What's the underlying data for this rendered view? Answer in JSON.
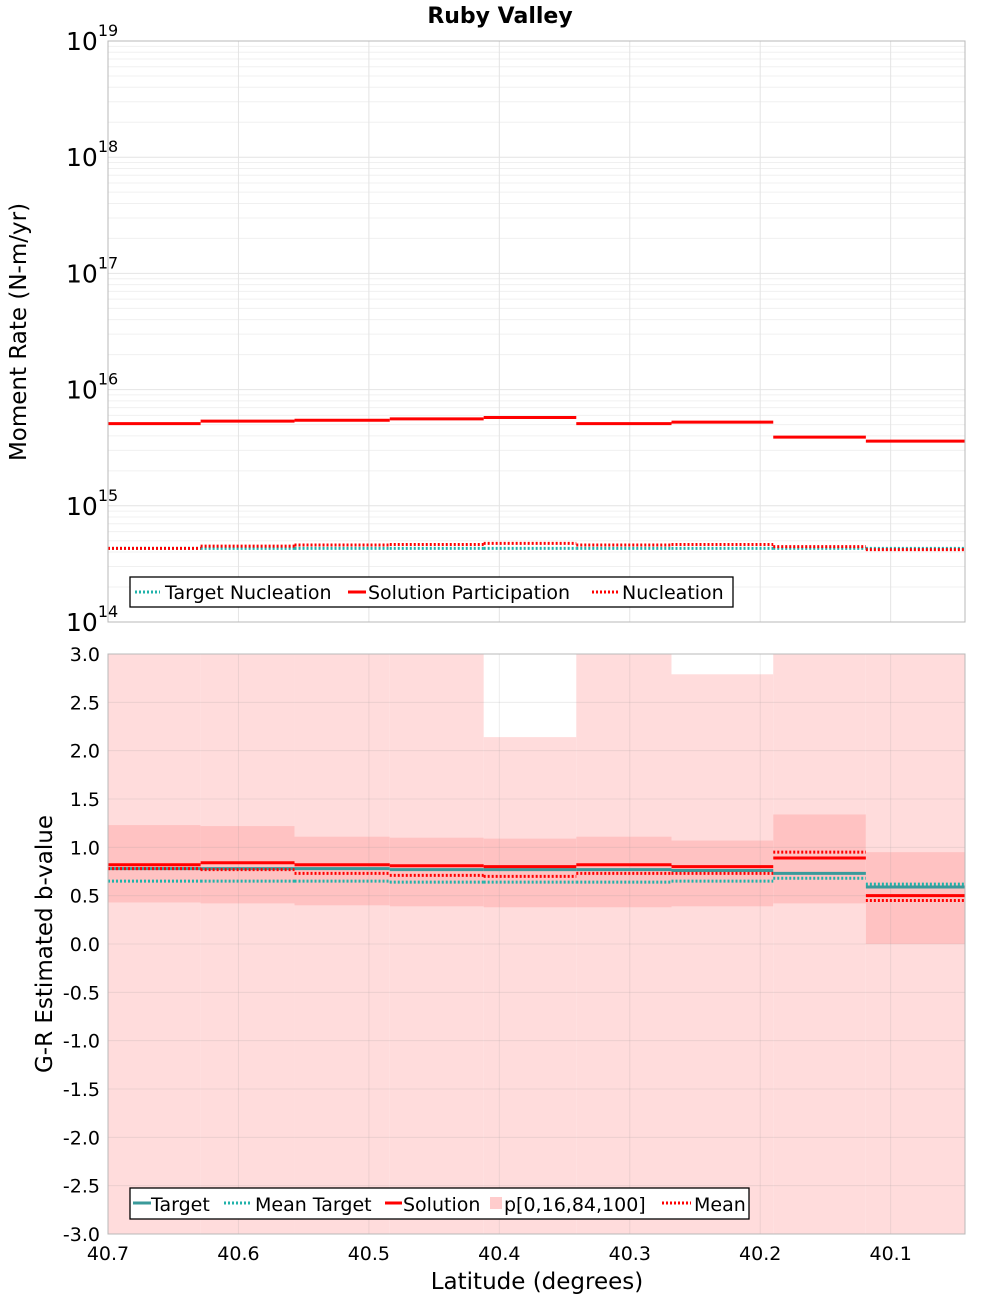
{
  "chart_data": [
    {
      "type": "line",
      "title": "Ruby Valley",
      "xlabel": "",
      "ylabel": "Moment Rate (N-m/yr)",
      "yscale": "log",
      "ylim": [
        100000000000000.0,
        1e+19
      ],
      "xlim": [
        40.7,
        40.043
      ],
      "x_inverted": true,
      "grid": true,
      "legend_position": "bottom-left",
      "yticks": [
        {
          "base": "10",
          "exp": "14"
        },
        {
          "base": "10",
          "exp": "15"
        },
        {
          "base": "10",
          "exp": "16"
        },
        {
          "base": "10",
          "exp": "17"
        },
        {
          "base": "10",
          "exp": "18"
        },
        {
          "base": "10",
          "exp": "19"
        }
      ],
      "bin_edges": [
        40.7,
        40.629,
        40.557,
        40.484,
        40.412,
        40.341,
        40.268,
        40.19,
        40.119,
        40.043
      ],
      "series": [
        {
          "name": "Target Nucleation",
          "style": "dotted",
          "color": "#20b2aa",
          "values": [
            430000000000000.0,
            430000000000000.0,
            430000000000000.0,
            430000000000000.0,
            430000000000000.0,
            430000000000000.0,
            430000000000000.0,
            430000000000000.0,
            430000000000000.0
          ]
        },
        {
          "name": "Solution Participation",
          "style": "solid",
          "color": "#ff0000",
          "values": [
            5100000000000000.0,
            5350000000000000.0,
            5450000000000000.0,
            5600000000000000.0,
            5750000000000000.0,
            5100000000000000.0,
            5250000000000000.0,
            3900000000000000.0,
            3600000000000000.0
          ]
        },
        {
          "name": "Nucleation",
          "style": "dotted",
          "color": "#ff0000",
          "values": [
            430000000000000.0,
            450000000000000.0,
            460000000000000.0,
            465000000000000.0,
            475000000000000.0,
            460000000000000.0,
            465000000000000.0,
            445000000000000.0,
            420000000000000.0
          ]
        }
      ]
    },
    {
      "type": "line",
      "title": "",
      "xlabel": "Latitude (degrees)",
      "ylabel": "G-R Estimated b-value",
      "ylim": [
        -3.0,
        3.0
      ],
      "xlim": [
        40.7,
        40.043
      ],
      "x_inverted": true,
      "grid": true,
      "legend_position": "bottom-left",
      "xticks": [
        "40.7",
        "40.6",
        "40.5",
        "40.4",
        "40.3",
        "40.2",
        "40.1"
      ],
      "xtick_values": [
        40.7,
        40.6,
        40.5,
        40.4,
        40.3,
        40.2,
        40.1
      ],
      "yticks": [
        "3.0",
        "2.5",
        "2.0",
        "1.5",
        "1.0",
        "0.5",
        "0.0",
        "-0.5",
        "-1.0",
        "-1.5",
        "-2.0",
        "-2.5",
        "-3.0"
      ],
      "ytick_values": [
        3.0,
        2.5,
        2.0,
        1.5,
        1.0,
        0.5,
        0.0,
        -0.5,
        -1.0,
        -1.5,
        -2.0,
        -2.5,
        -3.0
      ],
      "bin_edges": [
        40.7,
        40.629,
        40.557,
        40.484,
        40.412,
        40.341,
        40.268,
        40.19,
        40.119,
        40.043
      ],
      "bands": {
        "name": "p[0,16,84,100]",
        "color": "#ff0000",
        "p0": [
          -3.0,
          -3.0,
          -3.0,
          -3.0,
          -3.0,
          -3.0,
          -3.0,
          -3.0,
          -3.0
        ],
        "p100": [
          3.0,
          3.0,
          3.0,
          3.0,
          2.14,
          3.0,
          2.79,
          3.0,
          3.0
        ],
        "p16": [
          0.43,
          0.42,
          0.4,
          0.39,
          0.38,
          0.38,
          0.39,
          0.42,
          0.0
        ],
        "p84": [
          1.23,
          1.22,
          1.11,
          1.1,
          1.09,
          1.11,
          1.07,
          1.34,
          0.95
        ]
      },
      "series": [
        {
          "name": "Target",
          "style": "solid",
          "color": "#3a9a9a",
          "values": [
            0.78,
            0.78,
            0.78,
            0.77,
            0.77,
            0.77,
            0.76,
            0.73,
            0.59
          ]
        },
        {
          "name": "Mean Target",
          "style": "dotted",
          "color": "#20b2aa",
          "values": [
            0.65,
            0.65,
            0.65,
            0.64,
            0.64,
            0.64,
            0.65,
            0.68,
            0.62
          ]
        },
        {
          "name": "Solution",
          "style": "solid",
          "color": "#ff0000",
          "values": [
            0.82,
            0.84,
            0.82,
            0.81,
            0.8,
            0.82,
            0.8,
            0.89,
            0.5
          ]
        },
        {
          "name": "Mean",
          "style": "dotted",
          "color": "#ff0000",
          "values": [
            0.78,
            0.77,
            0.73,
            0.71,
            0.7,
            0.73,
            0.73,
            0.95,
            0.45
          ]
        }
      ]
    }
  ]
}
